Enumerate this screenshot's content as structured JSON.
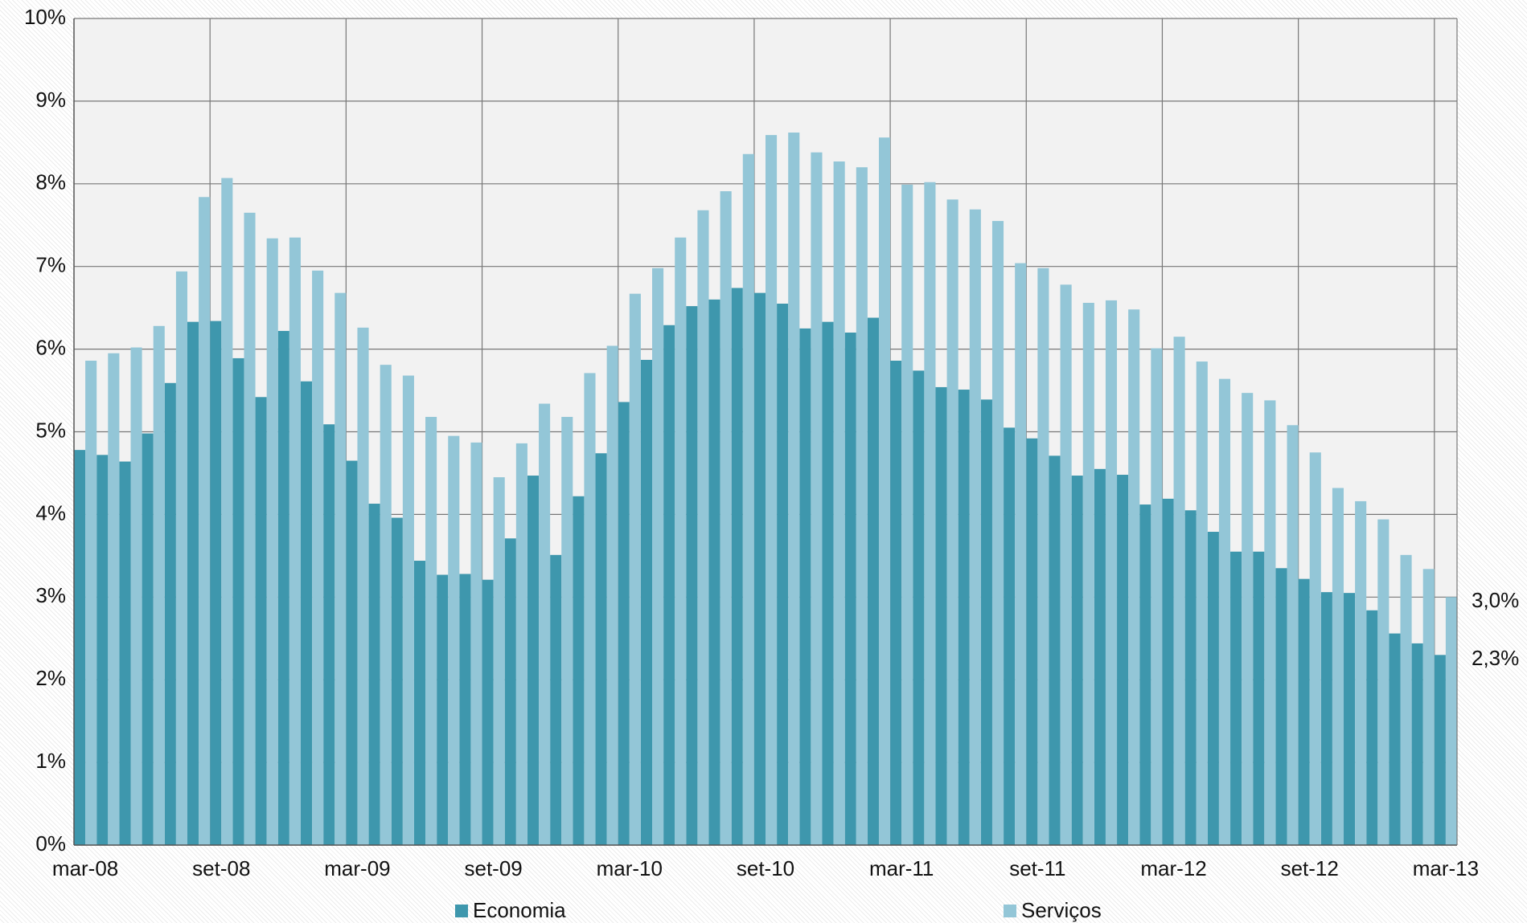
{
  "chart_data": {
    "type": "bar",
    "categories": [
      "mar-08",
      null,
      null,
      null,
      null,
      null,
      "set-08",
      null,
      null,
      null,
      null,
      null,
      "mar-09",
      null,
      null,
      null,
      null,
      null,
      "set-09",
      null,
      null,
      null,
      null,
      null,
      "mar-10",
      null,
      null,
      null,
      null,
      null,
      "set-10",
      null,
      null,
      null,
      null,
      null,
      "mar-11",
      null,
      null,
      null,
      null,
      null,
      "set-11",
      null,
      null,
      null,
      null,
      null,
      "mar-12",
      null,
      null,
      null,
      null,
      null,
      "set-12",
      null,
      null,
      null,
      null,
      null,
      "mar-13"
    ],
    "series": [
      {
        "name": "Economia",
        "color": "#3e97ad",
        "values": [
          4.78,
          4.72,
          4.64,
          4.98,
          5.59,
          6.33,
          6.34,
          5.89,
          5.42,
          6.22,
          5.61,
          5.09,
          4.65,
          4.13,
          3.96,
          3.44,
          3.27,
          3.28,
          3.21,
          3.71,
          4.47,
          3.51,
          4.22,
          4.74,
          5.36,
          5.87,
          6.29,
          6.52,
          6.6,
          6.74,
          6.68,
          6.55,
          6.25,
          6.33,
          6.2,
          6.38,
          5.86,
          5.74,
          5.54,
          5.51,
          5.39,
          5.05,
          4.92,
          4.71,
          4.47,
          4.55,
          4.48,
          4.12,
          4.19,
          4.05,
          3.79,
          3.55,
          3.55,
          3.35,
          3.22,
          3.06,
          3.05,
          2.84,
          2.56,
          2.44,
          2.3
        ],
        "value_labels": [
          null,
          null,
          null,
          null,
          null,
          null,
          null,
          null,
          null,
          null,
          null,
          null,
          null,
          null,
          null,
          null,
          null,
          null,
          null,
          null,
          null,
          null,
          null,
          null,
          null,
          null,
          null,
          null,
          null,
          null,
          null,
          null,
          null,
          null,
          null,
          null,
          null,
          null,
          null,
          null,
          null,
          null,
          null,
          null,
          null,
          null,
          null,
          null,
          null,
          null,
          null,
          null,
          null,
          null,
          null,
          null,
          null,
          null,
          null,
          null,
          "2,3%"
        ]
      },
      {
        "name": "Serviços",
        "color": "#93c6d7",
        "values": [
          5.86,
          5.95,
          6.02,
          6.28,
          6.94,
          7.84,
          8.07,
          7.65,
          7.34,
          7.35,
          6.95,
          6.68,
          6.26,
          5.81,
          5.68,
          5.18,
          4.95,
          4.87,
          4.45,
          4.86,
          5.34,
          5.18,
          5.71,
          6.04,
          6.67,
          6.98,
          7.35,
          7.68,
          7.91,
          8.36,
          8.59,
          8.62,
          8.38,
          8.27,
          8.2,
          8.56,
          7.99,
          8.02,
          7.81,
          7.69,
          7.55,
          7.04,
          6.98,
          6.78,
          6.56,
          6.59,
          6.48,
          6.01,
          6.15,
          5.85,
          5.64,
          5.47,
          5.38,
          5.08,
          4.75,
          4.32,
          4.16,
          3.94,
          3.51,
          3.34,
          3.0
        ],
        "value_labels": [
          null,
          null,
          null,
          null,
          null,
          null,
          null,
          null,
          null,
          null,
          null,
          null,
          null,
          null,
          null,
          null,
          null,
          null,
          null,
          null,
          null,
          null,
          null,
          null,
          null,
          null,
          null,
          null,
          null,
          null,
          null,
          null,
          null,
          null,
          null,
          null,
          null,
          null,
          null,
          null,
          null,
          null,
          null,
          null,
          null,
          null,
          null,
          null,
          null,
          null,
          null,
          null,
          null,
          null,
          null,
          null,
          null,
          null,
          null,
          null,
          "3,0%"
        ]
      }
    ],
    "ylim": [
      0,
      10
    ],
    "yticks": [
      {
        "value": 0,
        "label": "0%"
      },
      {
        "value": 1,
        "label": "1%"
      },
      {
        "value": 2,
        "label": "2%"
      },
      {
        "value": 3,
        "label": "3%"
      },
      {
        "value": 4,
        "label": "4%"
      },
      {
        "value": 5,
        "label": "5%"
      },
      {
        "value": 6,
        "label": "6%"
      },
      {
        "value": 7,
        "label": "7%"
      },
      {
        "value": 8,
        "label": "8%"
      },
      {
        "value": 9,
        "label": "9%"
      },
      {
        "value": 10,
        "label": "10%"
      }
    ],
    "grid": true,
    "legend": "bottom"
  }
}
